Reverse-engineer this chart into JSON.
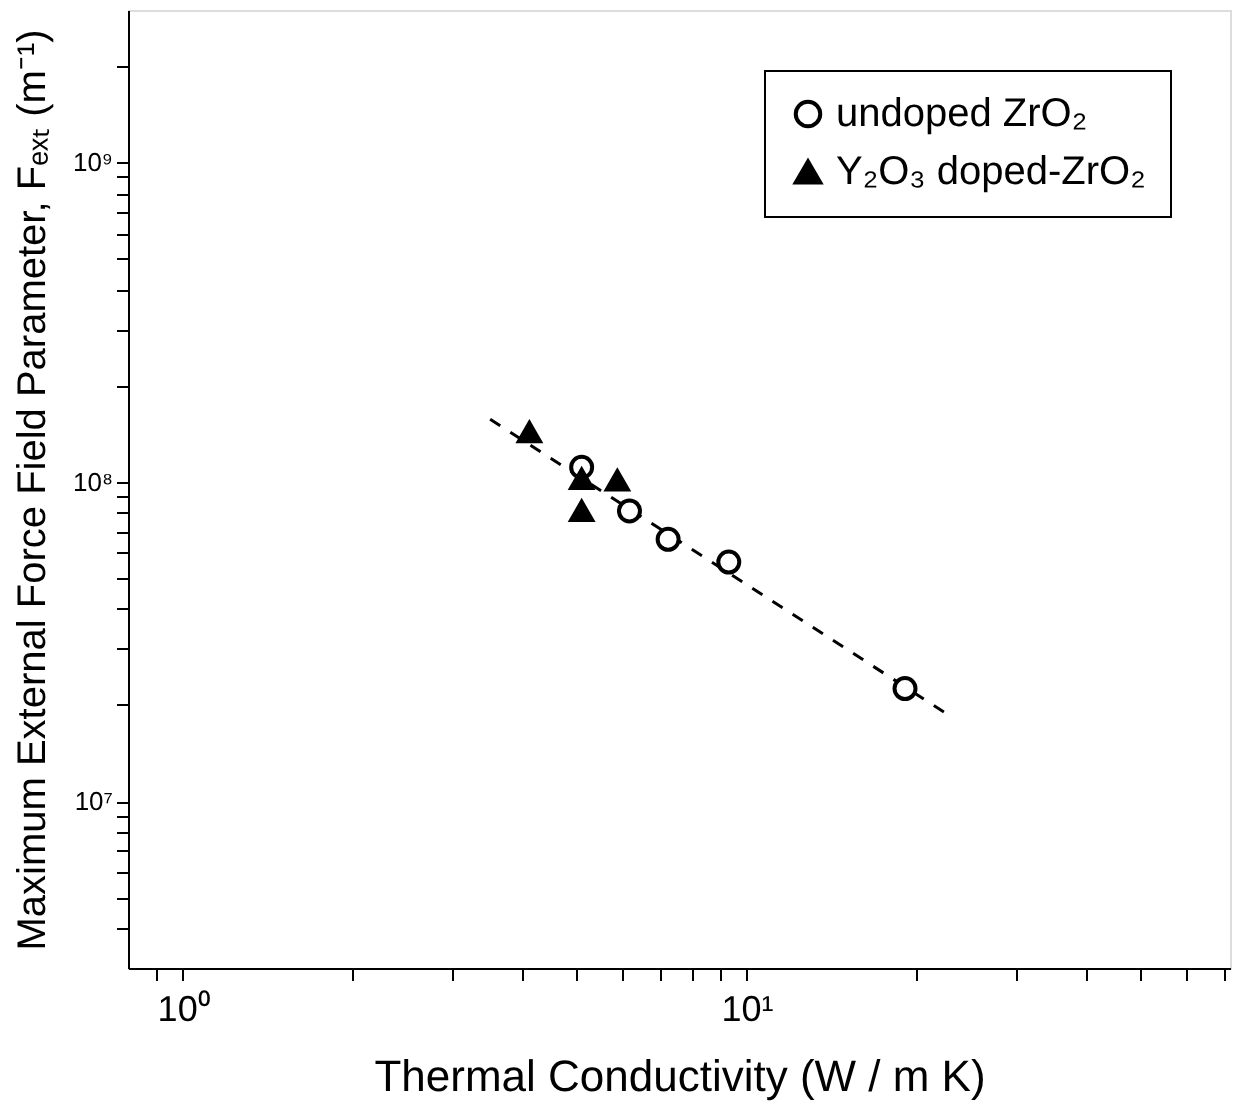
{
  "chart_data": {
    "type": "scatter",
    "xlabel": "Thermal Conductivity (W / m K)",
    "ylabel": "Maximum External Force Field Parameter, Fₑₓₜ (m⁻¹)",
    "log": "xy",
    "xlim": [
      0.8,
      72
    ],
    "ylim": [
      3000000,
      3000000000
    ],
    "xticks": [
      {
        "value": 0.9,
        "label": null
      },
      {
        "value": 1,
        "label": "10⁰"
      },
      {
        "value": 2,
        "label": null
      },
      {
        "value": 3,
        "label": null
      },
      {
        "value": 4,
        "label": null
      },
      {
        "value": 5,
        "label": null
      },
      {
        "value": 6,
        "label": null
      },
      {
        "value": 7,
        "label": null
      },
      {
        "value": 8,
        "label": null
      },
      {
        "value": 9,
        "label": null
      },
      {
        "value": 10,
        "label": "10¹"
      },
      {
        "value": 20,
        "label": null
      },
      {
        "value": 30,
        "label": null
      },
      {
        "value": 40,
        "label": null
      },
      {
        "value": 50,
        "label": null
      },
      {
        "value": 60,
        "label": null
      },
      {
        "value": 70,
        "label": null
      }
    ],
    "yticks": [
      {
        "value": 4000000,
        "label": null
      },
      {
        "value": 5000000,
        "label": null
      },
      {
        "value": 6000000,
        "label": null
      },
      {
        "value": 7000000,
        "label": null
      },
      {
        "value": 8000000,
        "label": null
      },
      {
        "value": 9000000,
        "label": null
      },
      {
        "value": 10000000,
        "label": "10⁷"
      },
      {
        "value": 20000000,
        "label": null
      },
      {
        "value": 30000000,
        "label": null
      },
      {
        "value": 40000000,
        "label": null
      },
      {
        "value": 50000000,
        "label": null
      },
      {
        "value": 60000000,
        "label": null
      },
      {
        "value": 70000000,
        "label": null
      },
      {
        "value": 80000000,
        "label": null
      },
      {
        "value": 90000000,
        "label": null
      },
      {
        "value": 100000000,
        "label": "10⁸"
      },
      {
        "value": 200000000,
        "label": null
      },
      {
        "value": 300000000,
        "label": null
      },
      {
        "value": 400000000,
        "label": null
      },
      {
        "value": 500000000,
        "label": null
      },
      {
        "value": 600000000,
        "label": null
      },
      {
        "value": 700000000,
        "label": null
      },
      {
        "value": 800000000,
        "label": null
      },
      {
        "value": 900000000,
        "label": null
      },
      {
        "value": 1000000000,
        "label": "10⁹"
      },
      {
        "value": 2000000000,
        "label": null
      }
    ],
    "grid": false,
    "legend": "top right",
    "series": [
      {
        "name": "undoped ZrO₂",
        "color": "#000000",
        "marker": "circle",
        "x": [
          5.1,
          6.2,
          7.26,
          9.3,
          19.1
        ],
        "values": [
          111000000,
          81000000,
          66000000,
          56000000,
          22500000
        ]
      },
      {
        "name": "Y₂O₃ doped-ZrO₂",
        "color": "#000000",
        "marker": "triangle",
        "x": [
          4.12,
          5.1,
          5.1,
          5.9
        ],
        "values": [
          143000000,
          102000000,
          81000000,
          101000000
        ]
      },
      {
        "type": "line",
        "color": "#000000",
        "line_style": "dashed",
        "x": [
          3.51,
          22.4
        ],
        "values": [
          157000000,
          19000000
        ]
      }
    ]
  }
}
